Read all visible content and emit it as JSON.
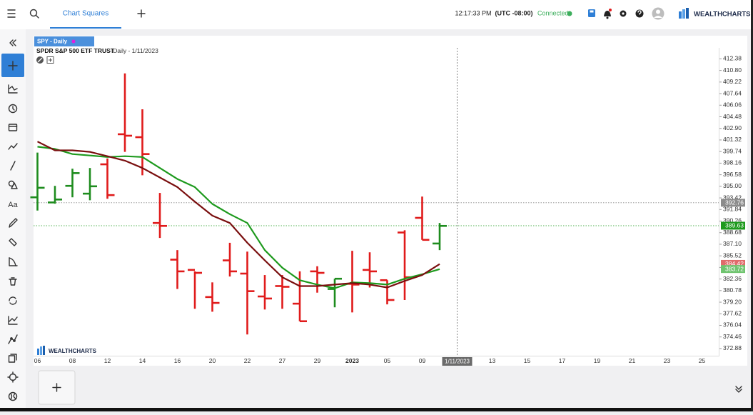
{
  "header": {
    "tab": "Chart Squares",
    "time": "12:17:33 PM",
    "timezone": "(UTC -08:00)",
    "status": "Connected",
    "logo": "WEALTHCHARTS"
  },
  "toolbar": {
    "text_tool": "Aa"
  },
  "chart_data": {
    "type": "ohlc",
    "badge": "SPY - Daily",
    "title": "SPDR S&P 500 ETF TRUST",
    "subtitle": "- Daily - 1/11/2023",
    "watermark": "WEALTHCHARTS",
    "categories": [
      "06",
      null,
      "08",
      null,
      "12",
      null,
      "14",
      null,
      "16",
      null,
      "20",
      null,
      "22",
      null,
      "27",
      null,
      "29",
      null,
      "2023",
      null,
      "05",
      null,
      "09",
      null,
      "1/11/2023",
      null,
      "13",
      null,
      "15",
      null,
      "17",
      null,
      "19",
      null,
      "21",
      null,
      "23",
      null,
      "25"
    ],
    "open": [
      393.5,
      392.8,
      395.06,
      394.0,
      398.0,
      402.1,
      401.7,
      390.0,
      385.0,
      383.6,
      379.9,
      384.9,
      383.1,
      379.98,
      381.4,
      379.0,
      383.4,
      381.0,
      381.7,
      383.6,
      382.2,
      388.7,
      390.7,
      387.2,
      null,
      null,
      null,
      null,
      null,
      null,
      null,
      null,
      null,
      null,
      null,
      null,
      null,
      null,
      null
    ],
    "high": [
      399.6,
      395.06,
      397.4,
      397.5,
      398.8,
      410.4,
      405.5,
      394.1,
      386.3,
      383.4,
      381.9,
      387.3,
      386.1,
      382.9,
      382.9,
      383.4,
      384.1,
      382.4,
      386.2,
      386.0,
      382.2,
      389.0,
      393.6,
      390.0,
      null,
      null,
      null,
      null,
      null,
      null,
      null,
      null,
      null,
      null,
      null,
      null,
      null,
      null,
      null
    ],
    "low": [
      391.7,
      392.63,
      393.5,
      393.1,
      393.3,
      399.7,
      396.5,
      387.96,
      381.0,
      378.3,
      377.9,
      382.7,
      374.8,
      378.2,
      378.3,
      376.6,
      380.5,
      378.5,
      377.8,
      381.2,
      378.9,
      379.5,
      387.7,
      386.3,
      null,
      null,
      null,
      null,
      null,
      null,
      null,
      null,
      null,
      null,
      null,
      null,
      null,
      null,
      null
    ],
    "close": [
      394.8,
      393.2,
      396.8,
      395.0,
      393.8,
      401.9,
      399.4,
      389.6,
      383.4,
      383.2,
      379.1,
      383.4,
      380.7,
      379.7,
      381.3,
      376.6,
      383.2,
      382.4,
      381.6,
      383.4,
      379.5,
      382.6,
      387.7,
      389.6,
      null,
      null,
      null,
      null,
      null,
      null,
      null,
      null,
      null,
      null,
      null,
      null,
      null,
      null,
      null
    ],
    "up_color": "#1e8c1e",
    "down_color": "#e01b1b",
    "series": [
      {
        "color": "#1e9a1e",
        "values": [
          400.4,
          400.1,
          399.4,
          399.2,
          399.0,
          399.1,
          399.0,
          397.5,
          396.0,
          394.9,
          392.6,
          391.2,
          390.0,
          386.3,
          383.9,
          382.2,
          381.6,
          381.1,
          381.9,
          381.8,
          381.6,
          382.4,
          383.0,
          383.7,
          null,
          null,
          null,
          null,
          null,
          null,
          null,
          null,
          null,
          null,
          null,
          null,
          null,
          null,
          null
        ]
      },
      {
        "color": "#7a0f0f",
        "values": [
          401.1,
          399.9,
          399.9,
          399.7,
          399.1,
          398.5,
          397.5,
          396.2,
          394.9,
          392.9,
          391.0,
          390.0,
          387.3,
          384.9,
          382.6,
          381.4,
          381.4,
          381.6,
          381.8,
          381.6,
          381.2,
          382.1,
          382.9,
          384.4,
          null,
          null,
          null,
          null,
          null,
          null,
          null,
          null,
          null,
          null,
          null,
          null,
          null,
          null,
          null
        ]
      }
    ],
    "ylim": [
      371.9,
      413.1
    ],
    "yticks": [
      412.38,
      {
        "value": 410.8,
        "label": "410.80"
      },
      409.22,
      407.64,
      406.06,
      404.48,
      {
        "value": 402.9,
        "label": "402.90"
      },
      401.32,
      399.74,
      398.16,
      396.58,
      {
        "value": 395.0,
        "label": "395.00"
      },
      393.42,
      391.84,
      390.26,
      388.68,
      {
        "value": 387.1,
        "label": "387.10"
      },
      385.52,
      383.94,
      382.36,
      380.78,
      {
        "value": 379.2,
        "label": "379.20"
      },
      377.62,
      376.04,
      374.46,
      372.88
    ],
    "price_tags": [
      {
        "value": 392.76,
        "color": "#8c8c8c",
        "line": true
      },
      {
        "value": 389.63,
        "color": "#1e9a1e",
        "line": true
      },
      {
        "value": 384.42,
        "color": "#e06b6b",
        "line": false
      },
      {
        "value": 383.72,
        "color": "#6fc46f",
        "line": false
      }
    ]
  }
}
